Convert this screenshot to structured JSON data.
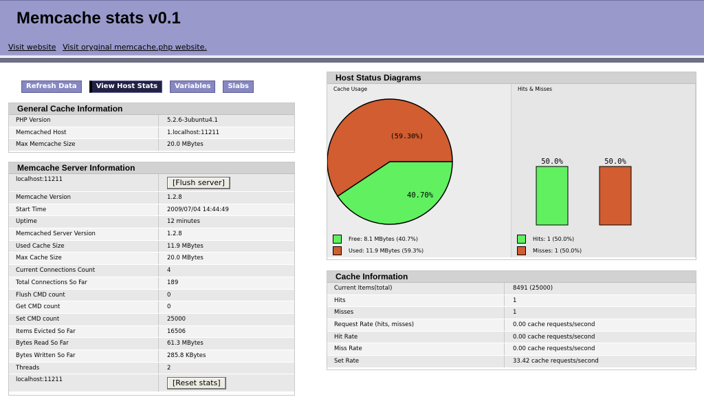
{
  "header": {
    "title": "Memcache stats v0.1",
    "links": [
      "Visit website",
      "Visit oryginal memcache.php website."
    ]
  },
  "menu": [
    "Refresh Data",
    "View Host Stats",
    "Variables",
    "Slabs"
  ],
  "general": {
    "title": "General Cache Information",
    "rows": [
      {
        "k": "PHP Version",
        "v": "5.2.6-3ubuntu4.1"
      },
      {
        "k": "Memcached Host",
        "v": "1.localhost:11211"
      },
      {
        "k": "Max Memcache Size",
        "v": "20.0 MBytes"
      }
    ]
  },
  "server": {
    "title": "Memcache Server Information",
    "host": "localhost:11211",
    "flush_label": "[Flush server]",
    "rows": [
      {
        "k": "Memcache Version",
        "v": "1.2.8"
      },
      {
        "k": "Start Time",
        "v": "2009/07/04 14:44:49"
      },
      {
        "k": "Uptime",
        "v": "12 minutes"
      },
      {
        "k": "Memcached Server Version",
        "v": "1.2.8"
      },
      {
        "k": "Used Cache Size",
        "v": "11.9 MBytes"
      },
      {
        "k": "Max Cache Size",
        "v": "20.0 MBytes"
      },
      {
        "k": "Current Connections Count",
        "v": "4"
      },
      {
        "k": "Total Connections So Far",
        "v": "189"
      },
      {
        "k": "Flush CMD count",
        "v": "0"
      },
      {
        "k": "Get CMD count",
        "v": "0"
      },
      {
        "k": "Set CMD count",
        "v": "25000"
      },
      {
        "k": "Items Evicted So Far",
        "v": "16506"
      },
      {
        "k": "Bytes Read So Far",
        "v": "61.3 MBytes"
      },
      {
        "k": "Bytes Written So Far",
        "v": "285.8 KBytes"
      },
      {
        "k": "Threads",
        "v": "2"
      }
    ],
    "reset_host": "localhost:11211",
    "reset_label": "[Reset stats]"
  },
  "diagrams": {
    "title": "Host Status Diagrams",
    "cache_usage_label": "Cache Usage",
    "hits_label": "Hits & Misses",
    "colors": {
      "free": "#60f060",
      "used": "#d15d30"
    },
    "pie": {
      "used_pct": 59.3,
      "free_pct": 40.7,
      "used_label": "(59.30%)",
      "free_label": "40.70%"
    },
    "bars": {
      "hits_pct": 50.0,
      "misses_pct": 50.0,
      "hits_label": "50.0%",
      "misses_label": "50.0%"
    },
    "legend": {
      "free": "Free: 8.1 MBytes (40.7%)",
      "used": "Used: 11.9 MBytes (59.3%)",
      "hits": "Hits: 1 (50.0%)",
      "misses": "Misses: 1 (50.0%)"
    }
  },
  "cacheinfo": {
    "title": "Cache Information",
    "rows": [
      {
        "k": "Current Items(total)",
        "v": "8491 (25000)"
      },
      {
        "k": "Hits",
        "v": "1"
      },
      {
        "k": "Misses",
        "v": "1"
      },
      {
        "k": "Request Rate (hits, misses)",
        "v": "0.00 cache requests/second"
      },
      {
        "k": "Hit Rate",
        "v": "0.00 cache requests/second"
      },
      {
        "k": "Miss Rate",
        "v": "0.00 cache requests/second"
      },
      {
        "k": "Set Rate",
        "v": "33.42 cache requests/second"
      }
    ]
  }
}
